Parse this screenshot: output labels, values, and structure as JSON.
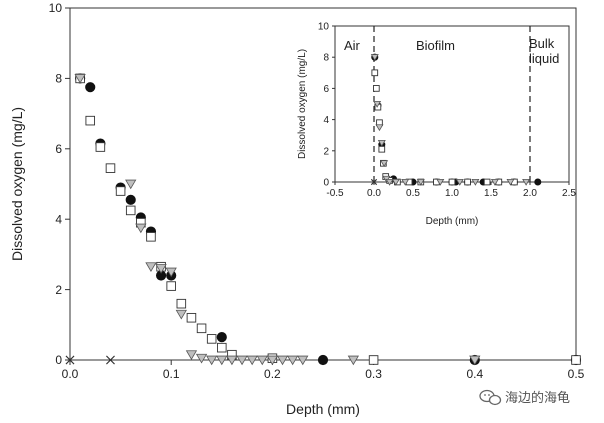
{
  "chart_data": [
    {
      "type": "scatter",
      "xlabel": "Depth (mm)",
      "ylabel": "Dissolved oxygen (mg/L)",
      "xlim": [
        0,
        0.5
      ],
      "ylim": [
        0,
        10
      ],
      "xticks": [
        "0.0",
        "0.1",
        "0.2",
        "0.3",
        "0.4",
        "0.5"
      ],
      "yticks": [
        "0",
        "2",
        "4",
        "6",
        "8",
        "10"
      ],
      "grid": false,
      "series": [
        {
          "marker": "filled-circle",
          "color": "#111111",
          "x": [
            0.01,
            0.02,
            0.03,
            0.05,
            0.06,
            0.07,
            0.08,
            0.09,
            0.1,
            0.15,
            0.25,
            0.4,
            0.5
          ],
          "y": [
            8.0,
            7.75,
            6.15,
            4.9,
            4.55,
            4.05,
            3.65,
            2.4,
            2.4,
            0.65,
            0.0,
            0.0,
            0.0
          ]
        },
        {
          "marker": "open-square",
          "color": "#333333",
          "x": [
            0.01,
            0.02,
            0.03,
            0.04,
            0.05,
            0.06,
            0.07,
            0.08,
            0.09,
            0.1,
            0.11,
            0.12,
            0.13,
            0.14,
            0.15,
            0.16,
            0.2,
            0.3,
            0.5
          ],
          "y": [
            8.0,
            6.8,
            6.05,
            5.45,
            4.8,
            4.25,
            3.9,
            3.5,
            2.65,
            2.1,
            1.6,
            1.2,
            0.9,
            0.6,
            0.35,
            0.15,
            0.05,
            0.0,
            0.0
          ]
        },
        {
          "marker": "open-triangle-down",
          "color": "#555555",
          "x": [
            0.01,
            0.06,
            0.07,
            0.08,
            0.09,
            0.1,
            0.11,
            0.12,
            0.13,
            0.14,
            0.15,
            0.16,
            0.17,
            0.18,
            0.19,
            0.2,
            0.21,
            0.22,
            0.23,
            0.28,
            0.4
          ],
          "y": [
            8.0,
            5.0,
            3.75,
            2.65,
            2.6,
            2.5,
            1.3,
            0.15,
            0.05,
            0.0,
            0.0,
            0.0,
            0.0,
            0.0,
            0.0,
            0.0,
            0.0,
            0.0,
            0.0,
            0.0,
            0.0
          ]
        },
        {
          "marker": "cross",
          "color": "#333333",
          "x": [
            0.0,
            0.04
          ],
          "y": [
            0.0,
            0.0
          ]
        }
      ]
    },
    {
      "type": "scatter",
      "xlabel": "Depth (mm)",
      "ylabel": "Dissolved oxygen (mg/L)",
      "xlim": [
        -0.5,
        2.5
      ],
      "ylim": [
        0,
        10
      ],
      "xticks": [
        "-0.5",
        "0.0",
        "0.5",
        "1.0",
        "1.5",
        "2.0",
        "2.5"
      ],
      "yticks": [
        "0",
        "2",
        "4",
        "6",
        "8",
        "10"
      ],
      "annotations": [
        "Air",
        "Biofilm",
        "Bulk",
        "liquid"
      ],
      "dashed_lines_x": [
        0.0,
        2.0
      ],
      "series": [
        {
          "marker": "filled-circle",
          "color": "#111111",
          "x": [
            0.01,
            0.05,
            0.1,
            0.25,
            0.5,
            0.8,
            1.0,
            1.05,
            1.2,
            1.4,
            1.6,
            1.8,
            2.1
          ],
          "y": [
            8.0,
            4.9,
            2.4,
            0.2,
            0.0,
            0.0,
            0.0,
            0.0,
            0.0,
            0.0,
            0.0,
            0.0,
            0.0
          ]
        },
        {
          "marker": "open-square",
          "color": "#333333",
          "x": [
            0.01,
            0.03,
            0.05,
            0.07,
            0.1,
            0.12,
            0.15,
            0.2,
            0.3,
            0.45,
            0.6,
            0.8,
            1.0,
            1.2,
            1.45,
            1.6,
            1.8
          ],
          "y": [
            7.0,
            6.0,
            4.8,
            3.8,
            2.1,
            1.2,
            0.35,
            0.1,
            0.0,
            0.0,
            0.0,
            0.0,
            0.0,
            0.0,
            0.0,
            0.0,
            0.0
          ]
        },
        {
          "marker": "open-triangle-down",
          "color": "#555555",
          "x": [
            0.01,
            0.04,
            0.07,
            0.1,
            0.13,
            0.16,
            0.2,
            0.28,
            0.4,
            0.6,
            0.85,
            1.1,
            1.3,
            1.55,
            1.75,
            1.95
          ],
          "y": [
            8.0,
            5.0,
            3.5,
            2.5,
            1.2,
            0.2,
            0.0,
            0.0,
            0.0,
            0.0,
            0.0,
            0.0,
            0.0,
            0.0,
            0.0,
            0.0
          ]
        },
        {
          "marker": "cross",
          "color": "#333333",
          "x": [
            0.0
          ],
          "y": [
            0.0
          ]
        }
      ]
    }
  ],
  "watermark": {
    "text": "海边的海龟",
    "icon": "wechat-icon"
  }
}
